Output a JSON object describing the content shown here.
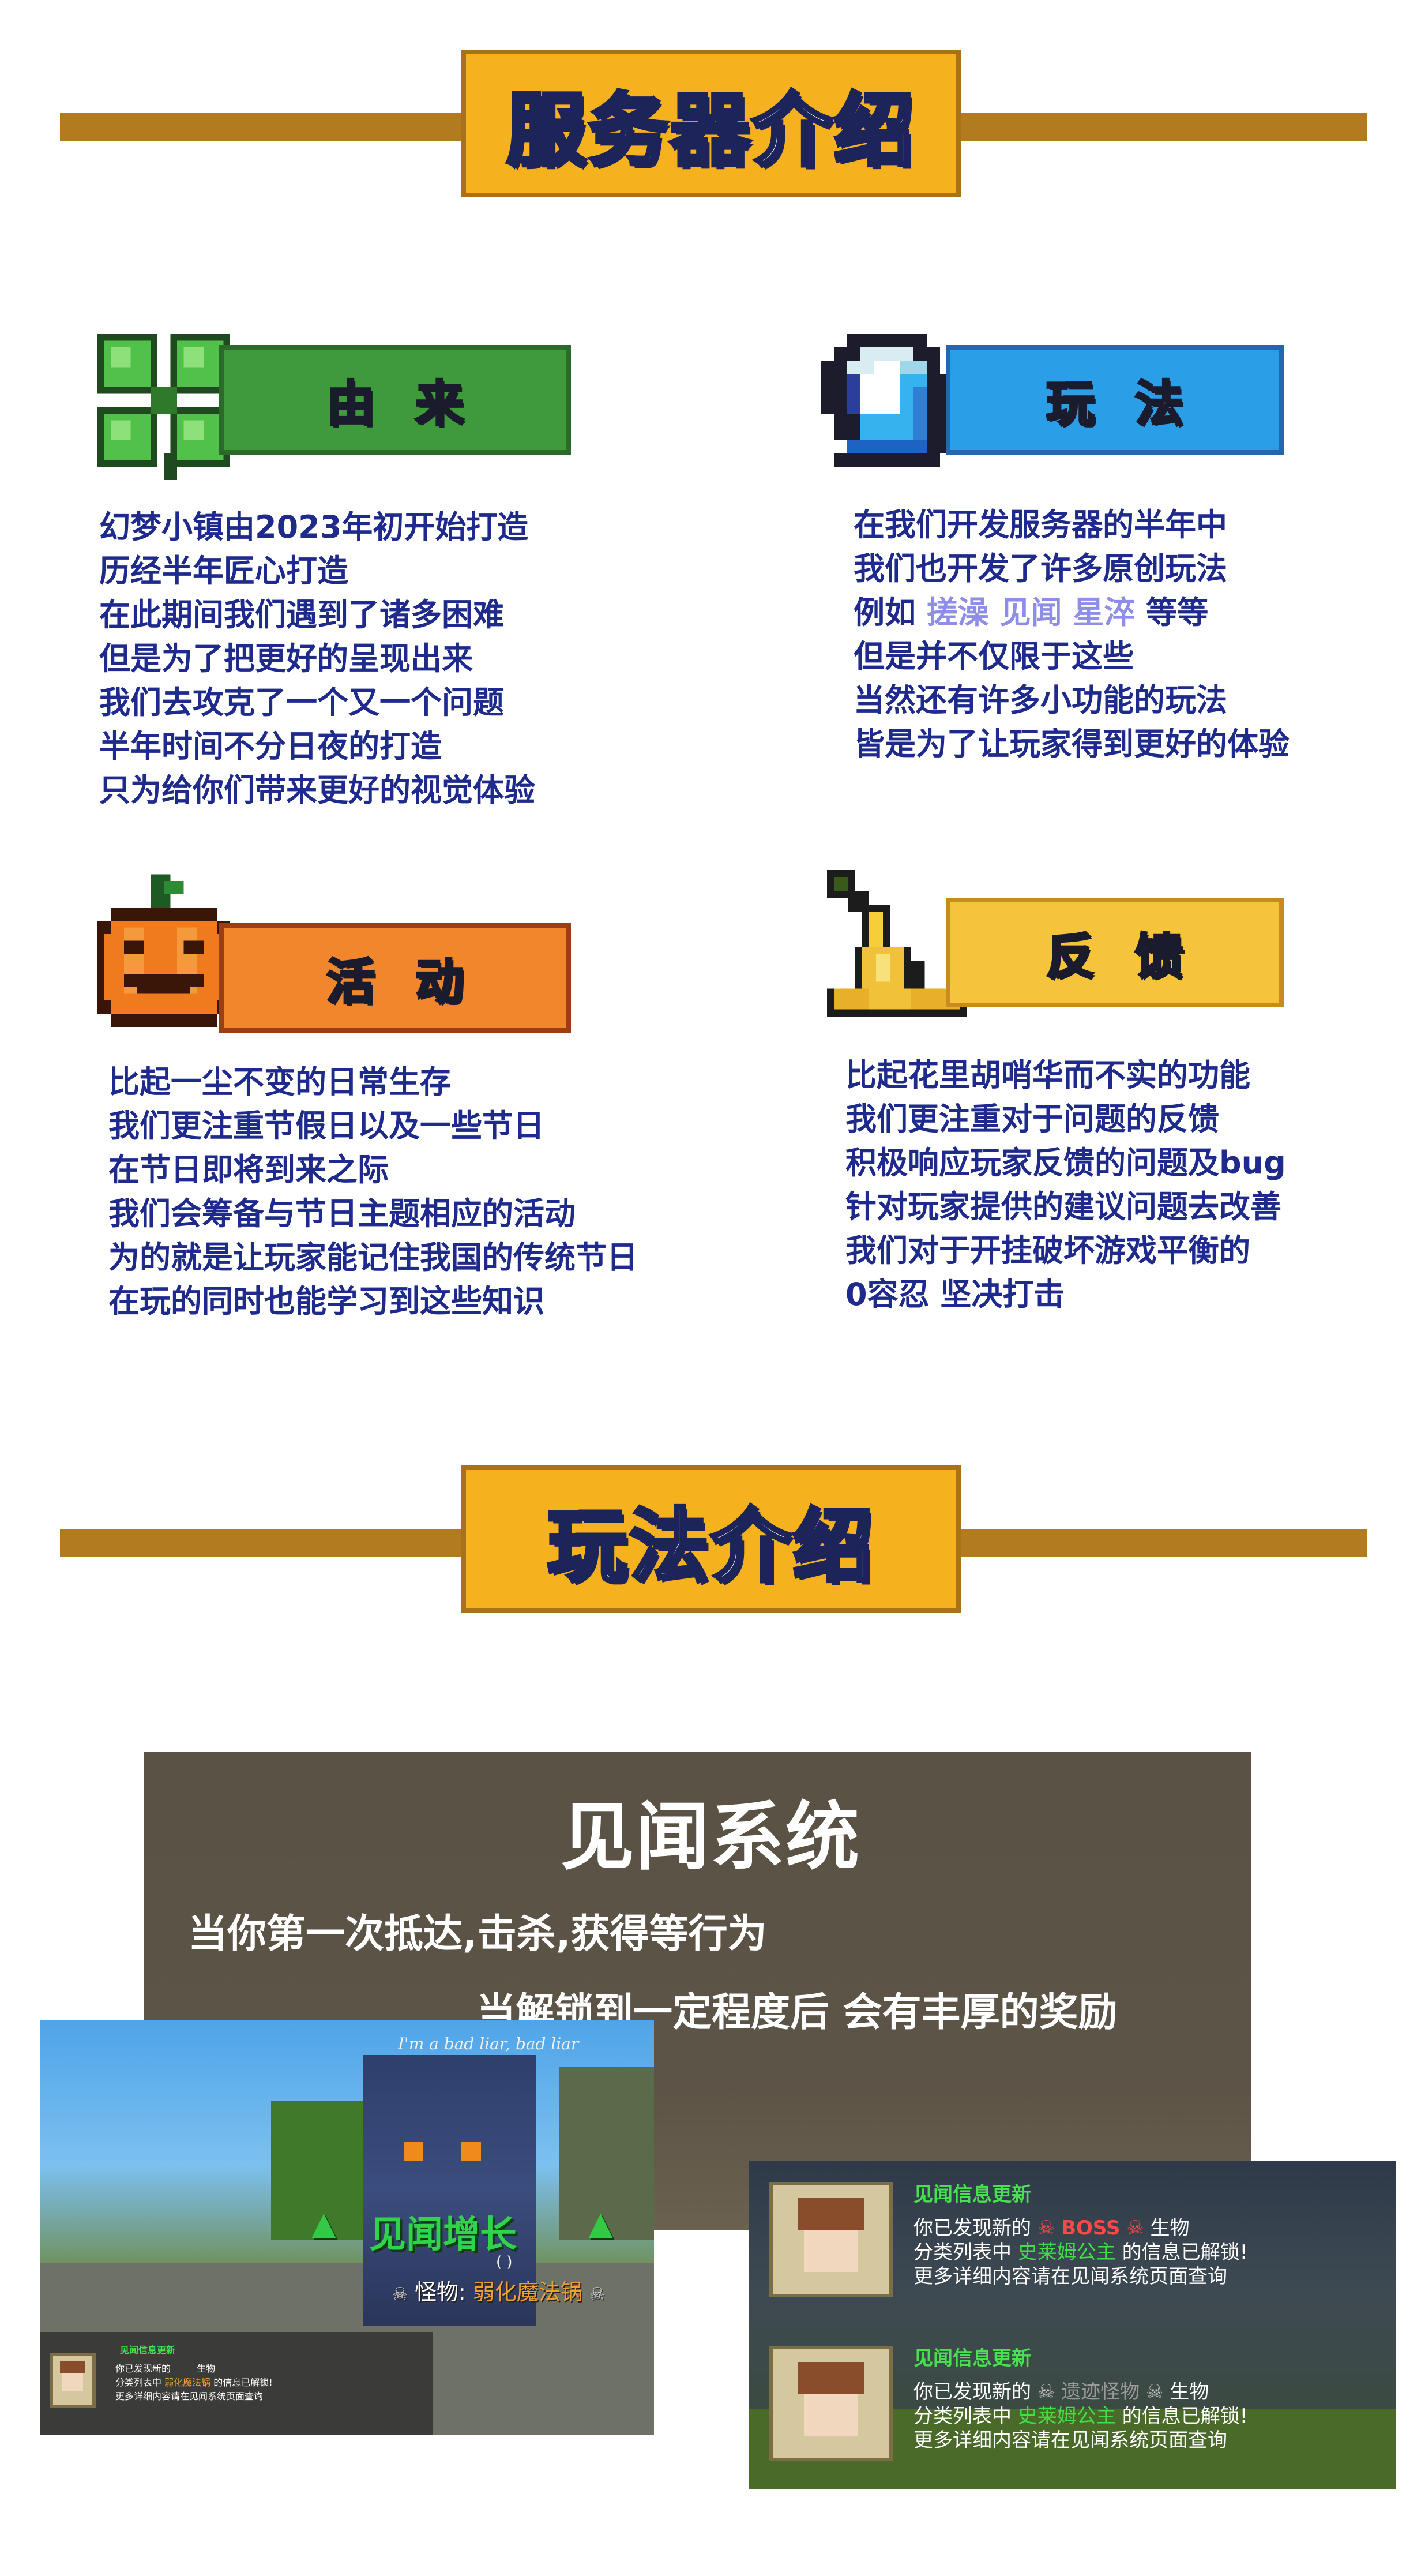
{
  "intro": {
    "banner_title": "服务器介绍",
    "sections": {
      "origin": {
        "tag": "由来",
        "lines": [
          "幻梦小镇由2023年初开始打造",
          "历经半年匠心打造",
          "在此期间我们遇到了诸多困难",
          "但是为了把更好的呈现出来",
          "我们去攻克了一个又一个问题",
          "半年时间不分日夜的打造",
          "只为给你们带来更好的视觉体验"
        ]
      },
      "gameplay": {
        "tag": "玩法",
        "lines": [
          "在我们开发服务器的半年中",
          "我们也开发了许多原创玩法"
        ],
        "example_prefix": "例如",
        "example_highlight": "搓澡 见闻 星淬",
        "example_suffix": "等等",
        "lines_after": [
          "但是并不仅限于这些",
          "当然还有许多小功能的玩法",
          "皆是为了让玩家得到更好的体验"
        ]
      },
      "events": {
        "tag": "活动",
        "lines": [
          "比起一尘不变的日常生存",
          "我们更注重节假日以及一些节日",
          "在节日即将到来之际",
          "我们会筹备与节日主题相应的活动",
          "为的就是让玩家能记住我国的传统节日",
          "在玩的同时也能学习到这些知识"
        ]
      },
      "feedback": {
        "tag": "反馈",
        "lines": [
          "比起花里胡哨华而不实的功能",
          "我们更注重对于问题的反馈",
          "积极响应玩家反馈的问题及bug",
          "针对玩家提供的建议问题去改善",
          "我们对于开挂破坏游戏平衡的",
          "0容忍 坚决打击"
        ]
      }
    }
  },
  "gameplay_intro": {
    "banner_title": "玩法介绍",
    "system_title": "见闻系统",
    "line1": "当你第一次抵达,击杀,获得等行为",
    "line2": "当解锁到一定程度后 会有丰厚的奖励"
  },
  "screenshot1": {
    "speech": "I'm a bad liar, bad liar",
    "growth_text": "见闻增长",
    "paren": "( )",
    "mob_prefix": "怪物:",
    "mob_name": "弱化魔法锅",
    "toast_title": "见闻信息更新",
    "toast_lines": [
      "你已发现新的",
      "分类列表中",
      "更多详细内容请在见闻系统页面查询"
    ],
    "toast_tail1": "生物",
    "toast_name": "弱化魔法锅",
    "toast_tail2": "的信息已解锁!"
  },
  "screenshot2": {
    "cards": [
      {
        "title": "见闻信息更新",
        "discover_prefix": "你已发现新的",
        "category": "BOSS",
        "discover_suffix": "生物",
        "list_prefix": "分类列表中",
        "name": "史莱姆公主",
        "list_suffix": "的信息已解锁!",
        "more": "更多详细内容请在见闻系统页面查询"
      },
      {
        "title": "见闻信息更新",
        "discover_prefix": "你已发现新的",
        "category": "遗迹怪物",
        "discover_suffix": "生物",
        "list_prefix": "分类列表中",
        "name": "史莱姆公主",
        "list_suffix": "的信息已解锁!",
        "more": "更多详细内容请在见闻系统页面查询"
      }
    ]
  }
}
